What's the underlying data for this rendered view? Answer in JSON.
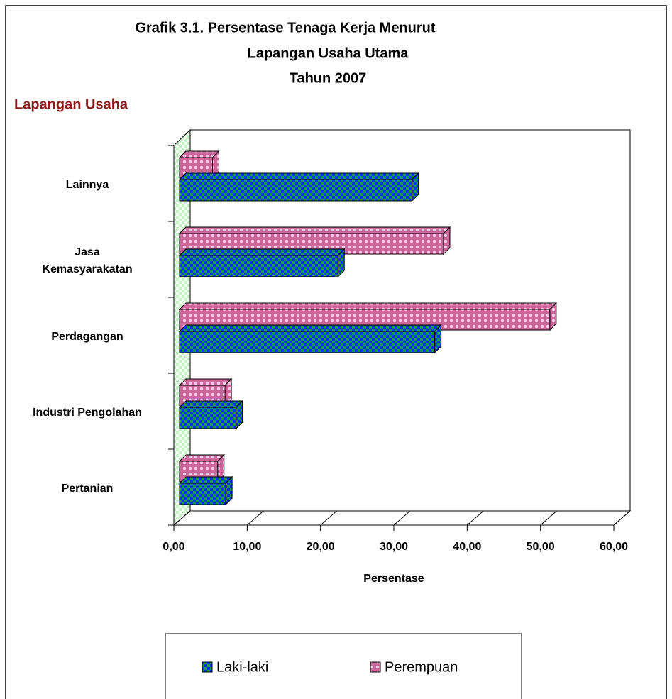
{
  "chart_data": {
    "type": "bar3d_horizontal",
    "title": [
      "Grafik 3.1.  Persentase Tenaga Kerja Menurut",
      "Lapangan Usaha Utama",
      "Tahun 2007"
    ],
    "y_axis_label": "Lapangan Usaha",
    "x_axis_label": "Persentase",
    "categories": [
      "Pertanian",
      "Industri Pengolahan",
      "Perdagangan",
      "Jasa\nKemasyarakatan",
      "Lainnya"
    ],
    "series": [
      {
        "name": "Laki-laki",
        "color": "#0033ff",
        "values": [
          6.3,
          7.7,
          34.8,
          21.6,
          31.7
        ]
      },
      {
        "name": "Perempuan",
        "color": "#cc6699",
        "values": [
          5.2,
          6.2,
          50.5,
          36.0,
          4.5
        ]
      }
    ],
    "xlim": [
      0,
      60
    ],
    "xticks": [
      {
        "value": 0,
        "label": "0,00"
      },
      {
        "value": 10,
        "label": "10,00"
      },
      {
        "value": 20,
        "label": "20,00"
      },
      {
        "value": 30,
        "label": "30,00"
      },
      {
        "value": 40,
        "label": "40,00"
      },
      {
        "value": 50,
        "label": "50,00"
      },
      {
        "value": 60,
        "label": "60,00"
      }
    ],
    "legend": "bottom"
  }
}
